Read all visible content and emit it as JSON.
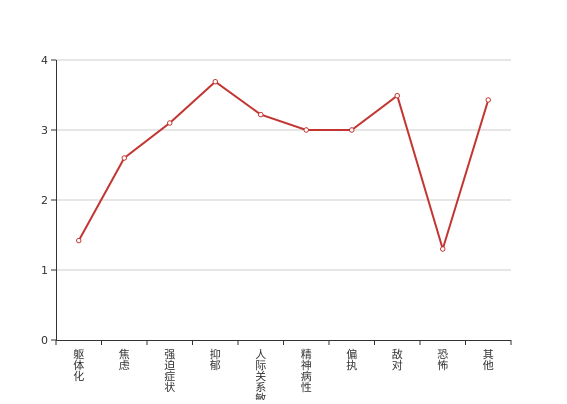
{
  "colors": {
    "series": "#c23531",
    "grid": "#cccccc",
    "axis": "#333333",
    "background": "#ffffff"
  },
  "chart_data": {
    "type": "line",
    "categories": [
      "躯体化",
      "焦虑",
      "强迫症状",
      "抑郁",
      "人际关系敏感",
      "精神病性",
      "偏执",
      "敌对",
      "恐怖",
      "其他"
    ],
    "series": [
      {
        "values": [
          1.42,
          2.6,
          3.1,
          3.69,
          3.22,
          3.0,
          3.0,
          3.49,
          1.3,
          3.43
        ]
      }
    ],
    "yticks": [
      0,
      1,
      2,
      3,
      4
    ],
    "ylim": [
      0,
      4
    ],
    "grid": true,
    "legend": "none",
    "title": "",
    "xlabel": "",
    "ylabel": ""
  }
}
